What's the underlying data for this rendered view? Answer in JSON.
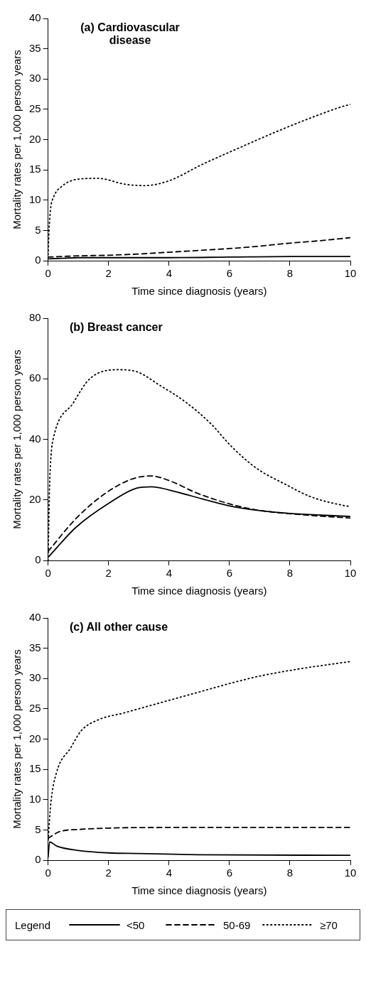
{
  "chart_data": [
    {
      "type": "line",
      "title": "(a) Cardiovascular disease",
      "xlabel": "Time since diagnosis (years)",
      "ylabel": "Mortality rates per 1,000 person years",
      "xlim": [
        0,
        10
      ],
      "xticks": [
        0,
        2,
        4,
        6,
        8,
        10
      ],
      "ylim": [
        0,
        40
      ],
      "yticks": [
        0,
        5,
        10,
        15,
        20,
        25,
        30,
        35,
        40
      ],
      "grid": false,
      "marker": "none",
      "legend": "bottom",
      "legend_title": "Legend",
      "series": [
        {
          "name": "<50",
          "color": "#000000",
          "line_style": "solid",
          "x": [
            0,
            0.5,
            1,
            2,
            4,
            6,
            8,
            10
          ],
          "values": [
            0.3,
            0.4,
            0.5,
            0.5,
            0.5,
            0.6,
            0.7,
            0.7
          ]
        },
        {
          "name": "50-69",
          "color": "#000000",
          "line_style": "dashed",
          "x": [
            0,
            0.5,
            1,
            2,
            3,
            4,
            5,
            6,
            7,
            8,
            9,
            10
          ],
          "values": [
            0.6,
            0.7,
            0.8,
            0.9,
            1.1,
            1.4,
            1.7,
            2.0,
            2.4,
            2.9,
            3.3,
            3.8
          ]
        },
        {
          "name": "≥70",
          "color": "#000000",
          "line_style": "dotted",
          "x": [
            0,
            0.03,
            0.08,
            0.18,
            0.46,
            0.92,
            1.65,
            2.57,
            3.2,
            4.0,
            5.1,
            6.4,
            7.6,
            8.7,
            9.7,
            10
          ],
          "values": [
            1,
            5,
            8.5,
            10.5,
            12.3,
            13.4,
            13.6,
            12.6,
            12.4,
            13.2,
            15.9,
            18.8,
            21.4,
            23.6,
            25.4,
            25.8
          ]
        }
      ]
    },
    {
      "type": "line",
      "title": "(b) Breast cancer",
      "xlabel": "Time since diagnosis (years)",
      "ylabel": "Mortality rates per 1,000 person years",
      "xlim": [
        0,
        10
      ],
      "xticks": [
        0,
        2,
        4,
        6,
        8,
        10
      ],
      "ylim": [
        0,
        80
      ],
      "yticks": [
        0,
        20,
        40,
        60,
        80
      ],
      "grid": false,
      "marker": "none",
      "series": [
        {
          "color": "#000000",
          "line_style": "solid",
          "x": [
            0,
            0.92,
            2.0,
            2.94,
            3.4,
            4.3,
            5.1,
            6.1,
            7.5,
            10
          ],
          "values": [
            1,
            10.9,
            18.8,
            23.9,
            24.3,
            22.5,
            20.3,
            17.8,
            15.9,
            14.5
          ]
        },
        {
          "color": "#000000",
          "line_style": "dashed",
          "x": [
            0,
            0.92,
            1.83,
            2.75,
            3.4,
            4.1,
            4.86,
            5.96,
            6.88,
            8.26,
            10
          ],
          "values": [
            3,
            13.8,
            21.7,
            26.8,
            27.9,
            26,
            22.5,
            18.8,
            16.7,
            15.2,
            14
          ]
        },
        {
          "color": "#000000",
          "line_style": "dotted",
          "x": [
            0,
            0.05,
            0.1,
            0.18,
            0.83,
            1.38,
            2.29,
            2.94,
            3.67,
            4.59,
            5.4,
            6.06,
            6.9,
            7.8,
            8.7,
            9.8,
            10
          ],
          "values": [
            0,
            25,
            35,
            40.6,
            52,
            60,
            63,
            62.3,
            58,
            52,
            45,
            37.7,
            30.4,
            25.4,
            21,
            18.1,
            17.8
          ]
        }
      ]
    },
    {
      "type": "line",
      "title": "(c) All other cause",
      "xlabel": "Time since diagnosis (years)",
      "ylabel": "Mortality rates per 1,000 person years",
      "xlim": [
        0,
        10
      ],
      "xticks": [
        0,
        2,
        4,
        6,
        8,
        10
      ],
      "ylim": [
        0,
        40
      ],
      "yticks": [
        0,
        5,
        10,
        15,
        20,
        25,
        30,
        35,
        40
      ],
      "grid": false,
      "marker": "none",
      "series": [
        {
          "color": "#000000",
          "line_style": "solid",
          "x": [
            0,
            0.05,
            0.3,
            1,
            2,
            3,
            5,
            10
          ],
          "values": [
            0.5,
            3.0,
            2.3,
            1.6,
            1.2,
            1.1,
            0.9,
            0.8
          ]
        },
        {
          "color": "#000000",
          "line_style": "dashed",
          "x": [
            0,
            0.37,
            1.1,
            2,
            4,
            6,
            8,
            10
          ],
          "values": [
            3.6,
            4.7,
            5.1,
            5.3,
            5.4,
            5.4,
            5.4,
            5.4
          ]
        },
        {
          "color": "#000000",
          "line_style": "dotted",
          "x": [
            0,
            0.09,
            0.28,
            0.74,
            1.1,
            1.67,
            2.5,
            3.5,
            4.8,
            6.1,
            7.0,
            8.2,
            9.7,
            10
          ],
          "values": [
            3.3,
            9.4,
            14.5,
            18.5,
            21.4,
            23.2,
            24.3,
            25.7,
            27.5,
            29.3,
            30.4,
            31.5,
            32.6,
            32.8
          ]
        }
      ]
    }
  ]
}
